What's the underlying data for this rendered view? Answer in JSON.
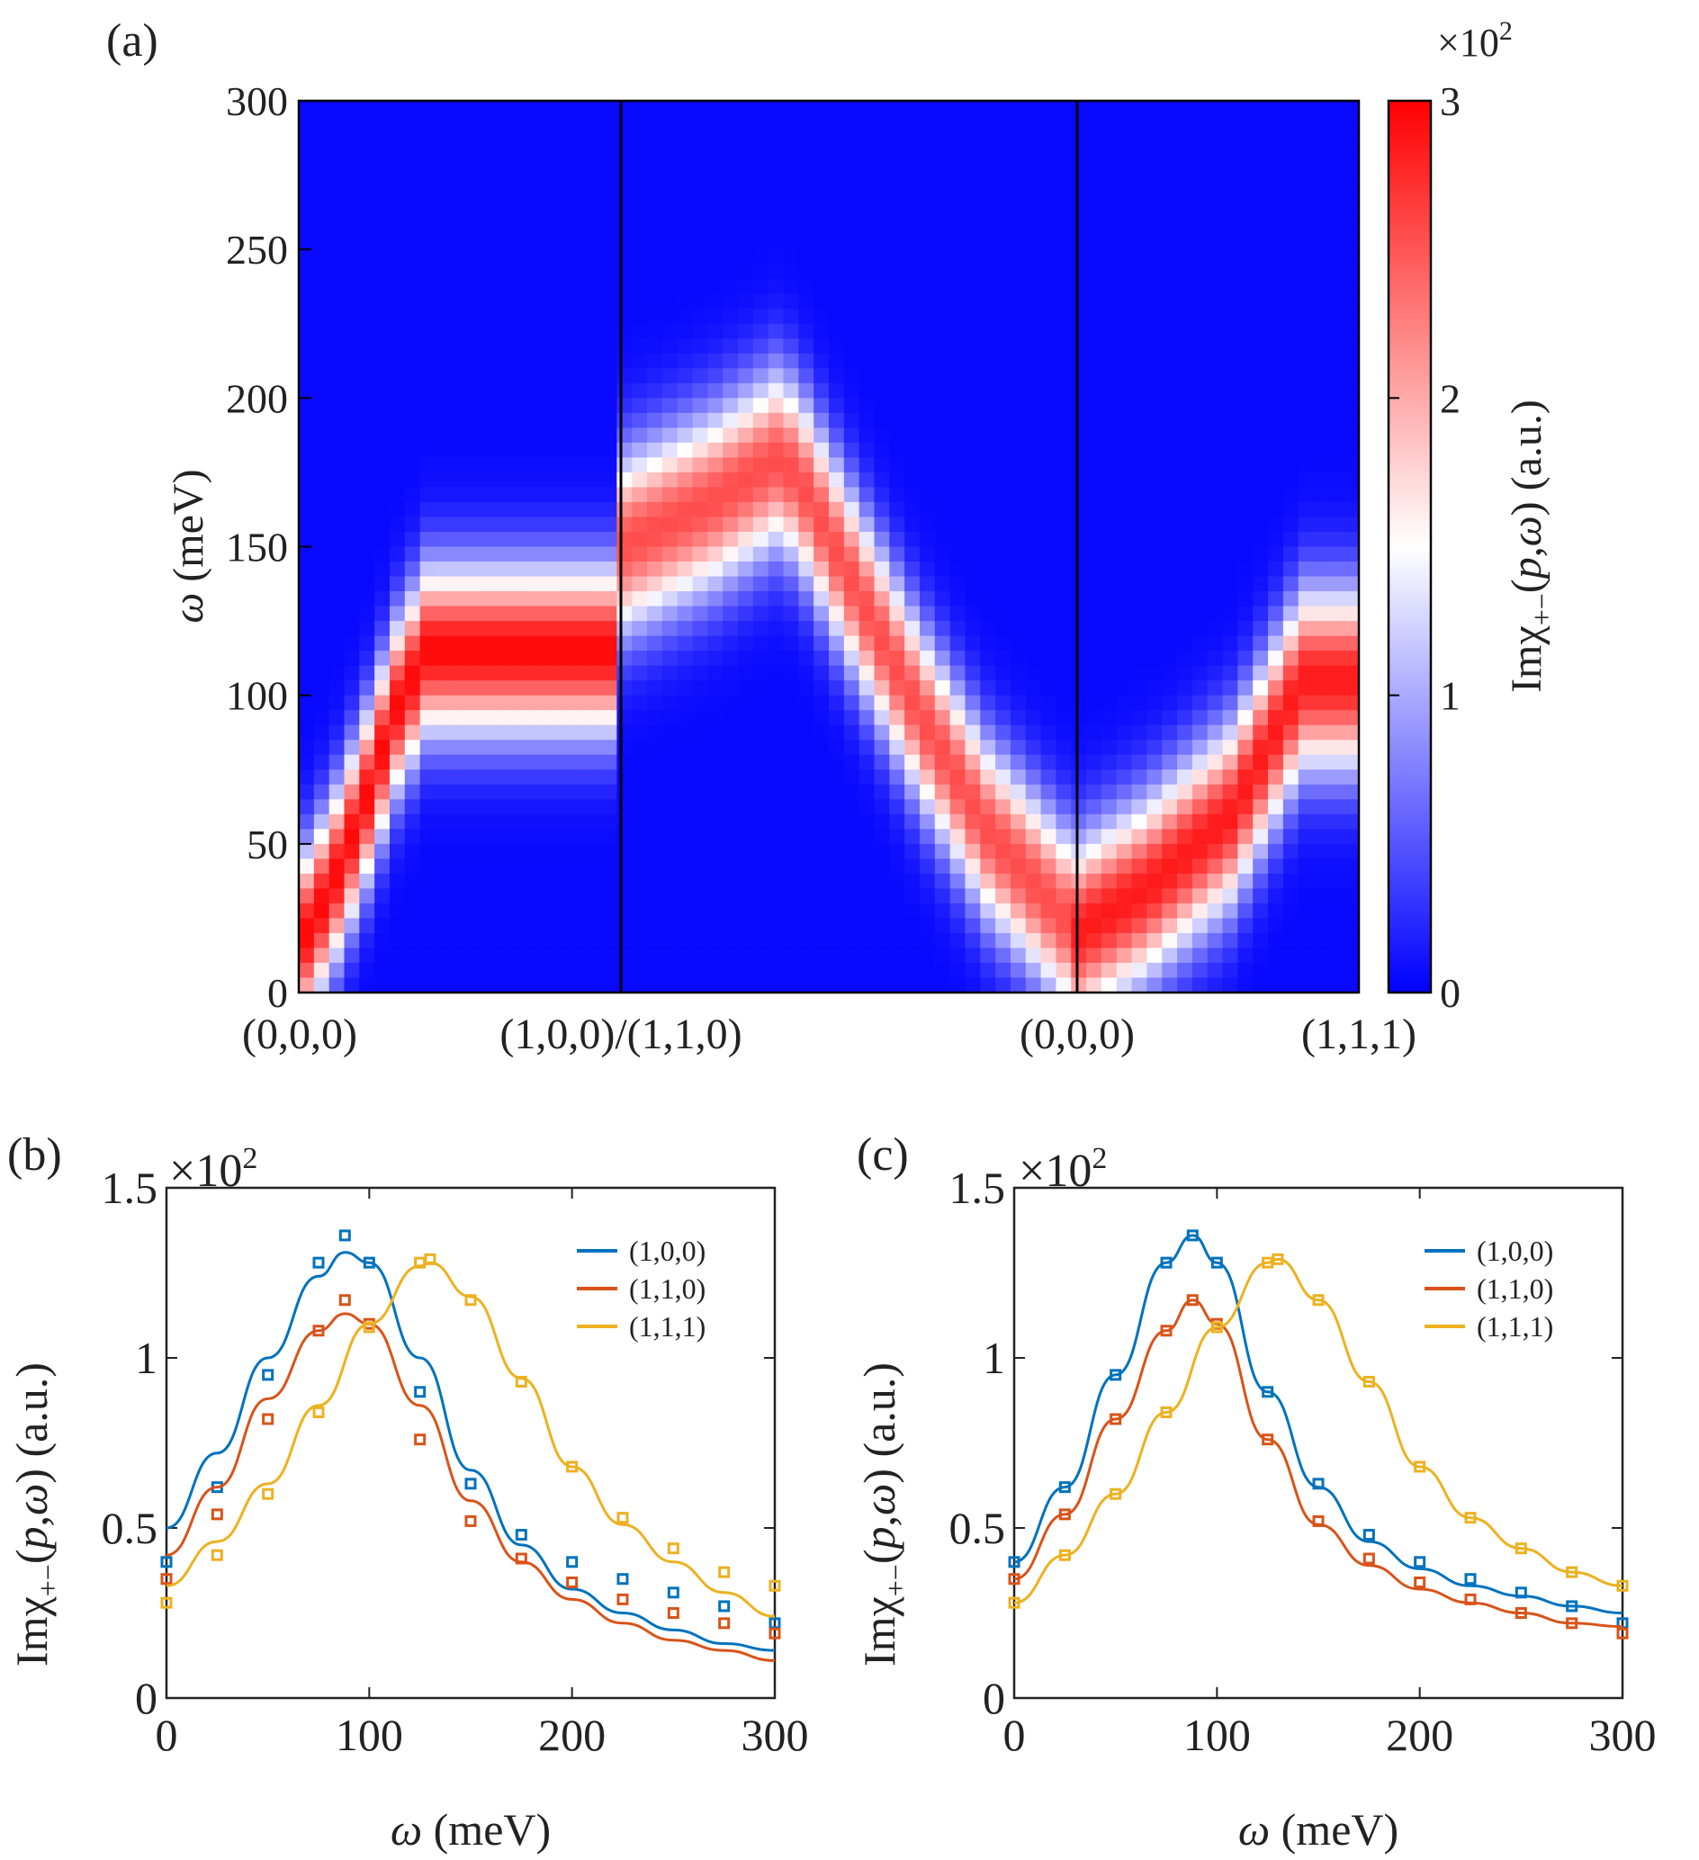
{
  "chart_data": [
    {
      "panel": "(a)",
      "type": "heatmap",
      "ylabel": "ω (meV)",
      "ylim": [
        0,
        300
      ],
      "yticks": [
        "0",
        "50",
        "100",
        "150",
        "200",
        "250",
        "300"
      ],
      "xlabels": [
        "(0,0,0)",
        "(1,0,0)/(1,1,0)",
        "(0,0,0)",
        "(1,1,1)"
      ],
      "segment_breaks": [
        0,
        1,
        2,
        3
      ],
      "segment_widths": [
        1.0,
        1.41,
        0.83
      ],
      "colorbar": {
        "label": "Imχ+−(p,ω) (a.u.)",
        "scale": "×10²",
        "range": [
          0,
          3
        ],
        "ticks": [
          "0",
          "1",
          "2",
          "3"
        ],
        "colors": [
          "#0000ff",
          "#ffffff",
          "#ff0000"
        ]
      },
      "ridges": [
        {
          "name": "segment-1",
          "points": [
            [
              0.0,
              15
            ],
            [
              0.1,
              35
            ],
            [
              0.2,
              62
            ],
            [
              0.3,
              95
            ],
            [
              0.4,
              115
            ]
          ],
          "width": 28,
          "amp": 2.9
        },
        {
          "name": "segment-2",
          "points": [
            [
              0.0,
              150
            ],
            [
              0.2,
              165
            ],
            [
              0.35,
              180
            ],
            [
              0.4,
              170
            ],
            [
              0.5,
              140
            ],
            [
              0.65,
              95
            ],
            [
              0.8,
              55
            ],
            [
              1.0,
              20
            ]
          ],
          "width": 30,
          "amp": 2.5
        },
        {
          "name": "segment-3",
          "points": [
            [
              0.0,
              20
            ],
            [
              0.25,
              35
            ],
            [
              0.55,
              60
            ],
            [
              0.8,
              105
            ]
          ],
          "width": 30,
          "amp": 2.8
        }
      ]
    },
    {
      "panel": "(b)",
      "type": "line",
      "xlabel": "ω (meV)",
      "ylabel": "Imχ+−(p,ω) (a.u.)",
      "yscale": "×10²",
      "xlim": [
        0,
        300
      ],
      "ylim": [
        0,
        1.5
      ],
      "xticks": [
        "0",
        "100",
        "200",
        "300"
      ],
      "yticks": [
        "0",
        "0.5",
        "1",
        "1.5"
      ],
      "legend_position": "top-right",
      "series": [
        {
          "name": "(1,0,0)",
          "color": "#0072bd",
          "markers": {
            "x": [
              0,
              25,
              50,
              75,
              88,
              100,
              125,
              150,
              175,
              200,
              225,
              250,
              275,
              300
            ],
            "y": [
              0.4,
              0.62,
              0.95,
              1.28,
              1.36,
              1.28,
              0.9,
              0.63,
              0.48,
              0.4,
              0.35,
              0.31,
              0.27,
              0.22
            ]
          },
          "fit": {
            "x": [
              0,
              25,
              50,
              75,
              88,
              100,
              125,
              150,
              175,
              200,
              225,
              250,
              275,
              300
            ],
            "y": [
              0.5,
              0.72,
              1.0,
              1.24,
              1.31,
              1.28,
              1.0,
              0.67,
              0.45,
              0.32,
              0.25,
              0.2,
              0.16,
              0.14
            ]
          }
        },
        {
          "name": "(1,1,0)",
          "color": "#d95319",
          "markers": {
            "x": [
              0,
              25,
              50,
              75,
              88,
              100,
              125,
              150,
              175,
              200,
              225,
              250,
              275,
              300
            ],
            "y": [
              0.35,
              0.54,
              0.82,
              1.08,
              1.17,
              1.1,
              0.76,
              0.52,
              0.41,
              0.34,
              0.29,
              0.25,
              0.22,
              0.19
            ]
          },
          "fit": {
            "x": [
              0,
              25,
              50,
              75,
              88,
              100,
              125,
              150,
              175,
              200,
              225,
              250,
              275,
              300
            ],
            "y": [
              0.42,
              0.62,
              0.88,
              1.08,
              1.13,
              1.1,
              0.86,
              0.58,
              0.4,
              0.29,
              0.22,
              0.17,
              0.14,
              0.11
            ]
          }
        },
        {
          "name": "(1,1,1)",
          "color": "#edb120",
          "markers": {
            "x": [
              0,
              25,
              50,
              75,
              100,
              125,
              130,
              150,
              175,
              200,
              225,
              250,
              275,
              300
            ],
            "y": [
              0.28,
              0.42,
              0.6,
              0.84,
              1.09,
              1.28,
              1.29,
              1.17,
              0.93,
              0.68,
              0.53,
              0.44,
              0.37,
              0.33
            ]
          },
          "fit": {
            "x": [
              0,
              25,
              50,
              75,
              100,
              125,
              130,
              150,
              175,
              200,
              225,
              250,
              275,
              300
            ],
            "y": [
              0.33,
              0.46,
              0.63,
              0.86,
              1.1,
              1.27,
              1.28,
              1.18,
              0.94,
              0.68,
              0.51,
              0.4,
              0.31,
              0.24
            ]
          }
        }
      ]
    },
    {
      "panel": "(c)",
      "type": "line",
      "xlabel": "ω (meV)",
      "ylabel": "Imχ+−(p,ω) (a.u.)",
      "yscale": "×10²",
      "xlim": [
        0,
        300
      ],
      "ylim": [
        0,
        1.5
      ],
      "xticks": [
        "0",
        "100",
        "200",
        "300"
      ],
      "yticks": [
        "0",
        "0.5",
        "1",
        "1.5"
      ],
      "legend_position": "top-right",
      "series": [
        {
          "name": "(1,0,0)",
          "color": "#0072bd",
          "markers": {
            "x": [
              0,
              25,
              50,
              75,
              88,
              100,
              125,
              150,
              175,
              200,
              225,
              250,
              275,
              300
            ],
            "y": [
              0.4,
              0.62,
              0.95,
              1.28,
              1.36,
              1.28,
              0.9,
              0.63,
              0.48,
              0.4,
              0.35,
              0.31,
              0.27,
              0.22
            ]
          },
          "fit": {
            "x": [
              0,
              25,
              50,
              75,
              88,
              100,
              125,
              150,
              175,
              200,
              225,
              250,
              275,
              300
            ],
            "y": [
              0.4,
              0.62,
              0.95,
              1.28,
              1.36,
              1.28,
              0.9,
              0.62,
              0.46,
              0.38,
              0.33,
              0.3,
              0.27,
              0.25
            ]
          }
        },
        {
          "name": "(1,1,0)",
          "color": "#d95319",
          "markers": {
            "x": [
              0,
              25,
              50,
              75,
              88,
              100,
              125,
              150,
              175,
              200,
              225,
              250,
              275,
              300
            ],
            "y": [
              0.35,
              0.54,
              0.82,
              1.08,
              1.17,
              1.1,
              0.76,
              0.52,
              0.41,
              0.34,
              0.29,
              0.25,
              0.22,
              0.19
            ]
          },
          "fit": {
            "x": [
              0,
              25,
              50,
              75,
              88,
              100,
              125,
              150,
              175,
              200,
              225,
              250,
              275,
              300
            ],
            "y": [
              0.35,
              0.54,
              0.82,
              1.08,
              1.17,
              1.1,
              0.76,
              0.51,
              0.39,
              0.32,
              0.28,
              0.25,
              0.22,
              0.21
            ]
          }
        },
        {
          "name": "(1,1,1)",
          "color": "#edb120",
          "markers": {
            "x": [
              0,
              25,
              50,
              75,
              100,
              125,
              130,
              150,
              175,
              200,
              225,
              250,
              275,
              300
            ],
            "y": [
              0.28,
              0.42,
              0.6,
              0.84,
              1.09,
              1.28,
              1.29,
              1.17,
              0.93,
              0.68,
              0.53,
              0.44,
              0.37,
              0.33
            ]
          },
          "fit": {
            "x": [
              0,
              25,
              50,
              75,
              100,
              125,
              130,
              150,
              175,
              200,
              225,
              250,
              275,
              300
            ],
            "y": [
              0.28,
              0.42,
              0.6,
              0.84,
              1.09,
              1.28,
              1.29,
              1.17,
              0.93,
              0.68,
              0.53,
              0.44,
              0.37,
              0.33
            ]
          }
        }
      ]
    }
  ]
}
